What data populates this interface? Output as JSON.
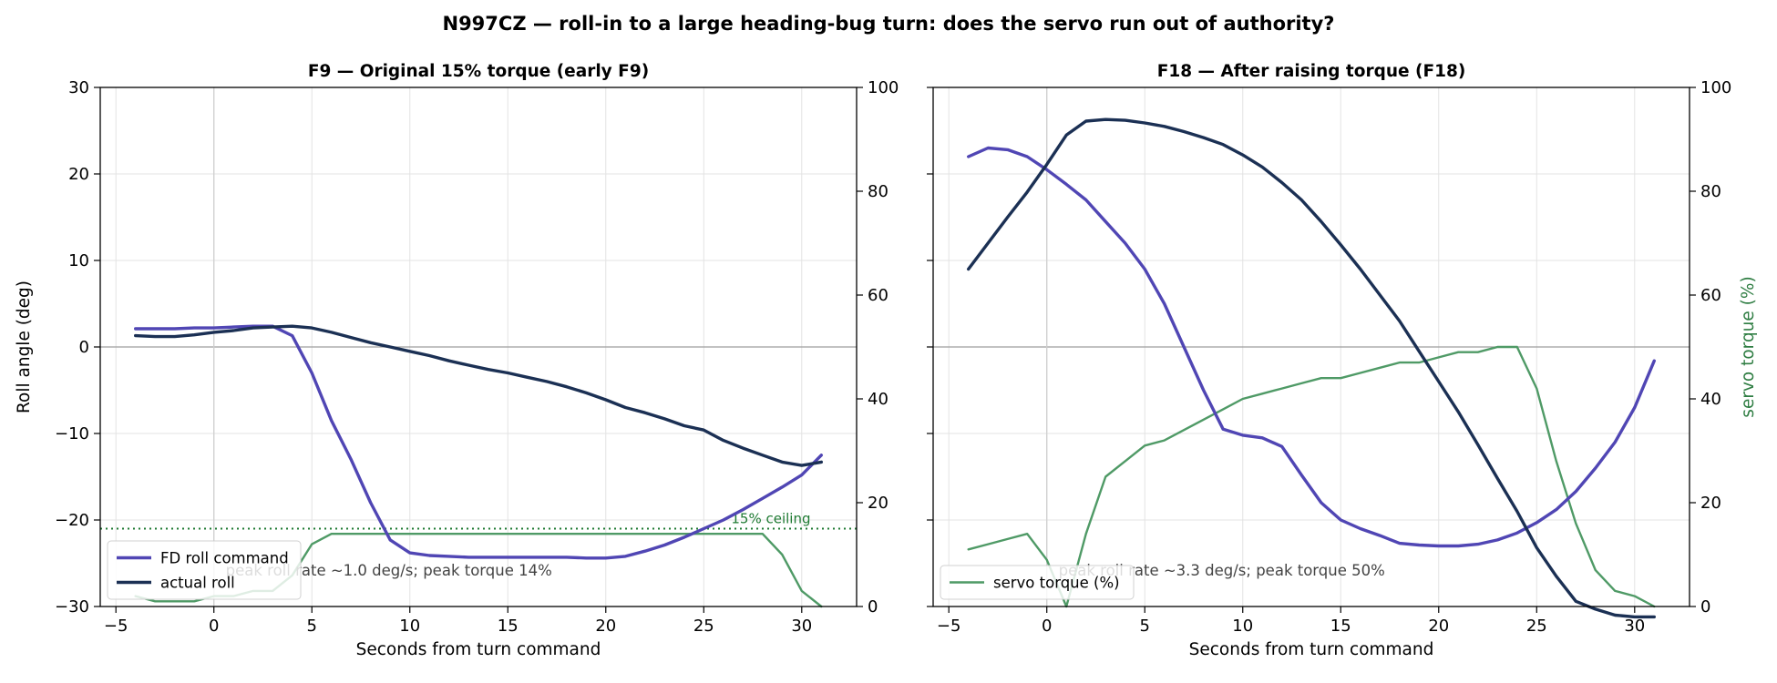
{
  "suptitle": "N997CZ — roll-in to a large heading-bug turn: does the servo run out of authority?",
  "colors": {
    "command": "#5046b4",
    "actual": "#1b3054",
    "torque": "#4f9a66",
    "ceiling": "#1e7a32",
    "torque_axis_label": "#2e7d42",
    "grid": "#e3e3e3",
    "zero_line": "#9e9e9e"
  },
  "chart_data": [
    {
      "type": "line",
      "title": "F9 — Original 15% torque (early F9)",
      "xlabel": "Seconds from turn command",
      "ylabel": "Roll angle (deg)",
      "y2label": "",
      "xlim": [
        -5.8,
        32.8
      ],
      "ylim": [
        -30,
        30
      ],
      "y2lim": [
        0,
        100
      ],
      "xticks": [
        -5,
        0,
        5,
        10,
        15,
        20,
        25,
        30
      ],
      "yticks": [
        -30,
        -20,
        -10,
        0,
        10,
        20,
        30
      ],
      "y2ticks": [
        0,
        20,
        40,
        60,
        80,
        100
      ],
      "grid": true,
      "legend": {
        "placement": "lower-left",
        "entries": [
          "FD roll command",
          "actual roll"
        ]
      },
      "x": [
        -4,
        -3,
        -2,
        -1,
        0,
        1,
        2,
        3,
        4,
        5,
        6,
        7,
        8,
        9,
        10,
        11,
        12,
        13,
        14,
        15,
        16,
        17,
        18,
        19,
        20,
        21,
        22,
        23,
        24,
        25,
        26,
        27,
        28,
        29,
        30,
        31
      ],
      "series": [
        {
          "name": "FD roll command",
          "axis": "left",
          "color_key": "command",
          "width": 3.4,
          "values": [
            2.1,
            2.1,
            2.1,
            2.2,
            2.2,
            2.3,
            2.4,
            2.4,
            1.3,
            -3.0,
            -8.5,
            -13.0,
            -18.0,
            -22.3,
            -23.8,
            -24.1,
            -24.2,
            -24.3,
            -24.3,
            -24.3,
            -24.3,
            -24.3,
            -24.3,
            -24.4,
            -24.4,
            -24.2,
            -23.6,
            -22.9,
            -22.0,
            -21.0,
            -20.0,
            -18.8,
            -17.5,
            -16.2,
            -14.8,
            -12.5
          ]
        },
        {
          "name": "actual roll",
          "axis": "left",
          "color_key": "actual",
          "width": 3.4,
          "values": [
            1.3,
            1.2,
            1.2,
            1.4,
            1.7,
            1.9,
            2.2,
            2.3,
            2.4,
            2.2,
            1.7,
            1.1,
            0.5,
            0.0,
            -0.5,
            -1.0,
            -1.6,
            -2.1,
            -2.6,
            -3.0,
            -3.5,
            -4.0,
            -4.6,
            -5.3,
            -6.1,
            -7.0,
            -7.6,
            -8.3,
            -9.1,
            -9.6,
            -10.8,
            -11.7,
            -12.5,
            -13.3,
            -13.7,
            -13.3
          ]
        },
        {
          "name": "",
          "axis": "right",
          "color_key": "torque",
          "width": 2.4,
          "values": [
            2,
            1,
            1,
            1,
            2,
            2,
            3,
            3,
            6,
            12,
            14,
            14,
            14,
            14,
            14,
            14,
            14,
            14,
            14,
            14,
            14,
            14,
            14,
            14,
            14,
            14,
            14,
            14,
            14,
            14,
            14,
            14,
            14,
            10,
            3,
            0
          ]
        }
      ],
      "reference_line": {
        "axis": "right",
        "value": 15,
        "label": "15% ceiling",
        "label_x": 26.4,
        "color_key": "ceiling"
      },
      "annotation": {
        "text": "peak roll rate ~1.0 deg/s; peak torque 14%",
        "x": 0.6,
        "y": -26.4
      }
    },
    {
      "type": "line",
      "title": "F18 — After raising torque (F18)",
      "xlabel": "Seconds from turn command",
      "ylabel": "",
      "y2label": "servo torque (%)",
      "xlim": [
        -5.8,
        32.8
      ],
      "ylim": [
        -30,
        30
      ],
      "y2lim": [
        0,
        100
      ],
      "xticks": [
        -5,
        0,
        5,
        10,
        15,
        20,
        25,
        30
      ],
      "yticks": [
        -30,
        -20,
        -10,
        0,
        10,
        20,
        30
      ],
      "y2ticks": [
        0,
        20,
        40,
        60,
        80,
        100
      ],
      "grid": true,
      "legend": {
        "placement": "lower-left",
        "entries": [
          "servo torque (%)"
        ]
      },
      "x": [
        -4,
        -3,
        -2,
        -1,
        0,
        1,
        2,
        3,
        4,
        5,
        6,
        7,
        8,
        9,
        10,
        11,
        12,
        13,
        14,
        15,
        16,
        17,
        18,
        19,
        20,
        21,
        22,
        23,
        24,
        25,
        26,
        27,
        28,
        29,
        30,
        31
      ],
      "series": [
        {
          "name": "",
          "axis": "left",
          "color_key": "command",
          "width": 3.4,
          "values": [
            22.0,
            23.0,
            22.8,
            22.0,
            20.5,
            18.8,
            17.0,
            14.5,
            12.0,
            9.0,
            5.0,
            0.0,
            -5.0,
            -9.5,
            -10.2,
            -10.5,
            -11.5,
            -14.8,
            -18.0,
            -20.0,
            -21.0,
            -21.8,
            -22.7,
            -22.9,
            -23.0,
            -23.0,
            -22.8,
            -22.3,
            -21.5,
            -20.3,
            -18.8,
            -16.7,
            -14.0,
            -11.0,
            -7.0,
            -1.6
          ]
        },
        {
          "name": "",
          "axis": "left",
          "color_key": "actual",
          "width": 3.4,
          "values": [
            9.0,
            12.0,
            15.0,
            17.9,
            21.1,
            24.5,
            26.1,
            26.3,
            26.2,
            25.9,
            25.5,
            24.9,
            24.2,
            23.4,
            22.2,
            20.8,
            19.0,
            17.0,
            14.5,
            11.8,
            9.0,
            6.0,
            3.0,
            -0.5,
            -4.0,
            -7.5,
            -11.3,
            -15.2,
            -19.0,
            -23.2,
            -26.5,
            -29.4,
            -30.3,
            -31.0,
            -31.2,
            -31.2
          ]
        },
        {
          "name": "servo torque (%)",
          "axis": "right",
          "color_key": "torque",
          "width": 2.4,
          "values": [
            11,
            12,
            13,
            14,
            9,
            0,
            14,
            25,
            28,
            31,
            32,
            34,
            36,
            38,
            40,
            41,
            42,
            43,
            44,
            44,
            45,
            46,
            47,
            47,
            48,
            49,
            49,
            50,
            50,
            42,
            28,
            16,
            7,
            3,
            2,
            0
          ]
        }
      ],
      "reference_line": null,
      "annotation": {
        "text": "peak roll rate ~3.3 deg/s; peak torque 50%",
        "x": 0.6,
        "y": -26.4
      }
    }
  ]
}
